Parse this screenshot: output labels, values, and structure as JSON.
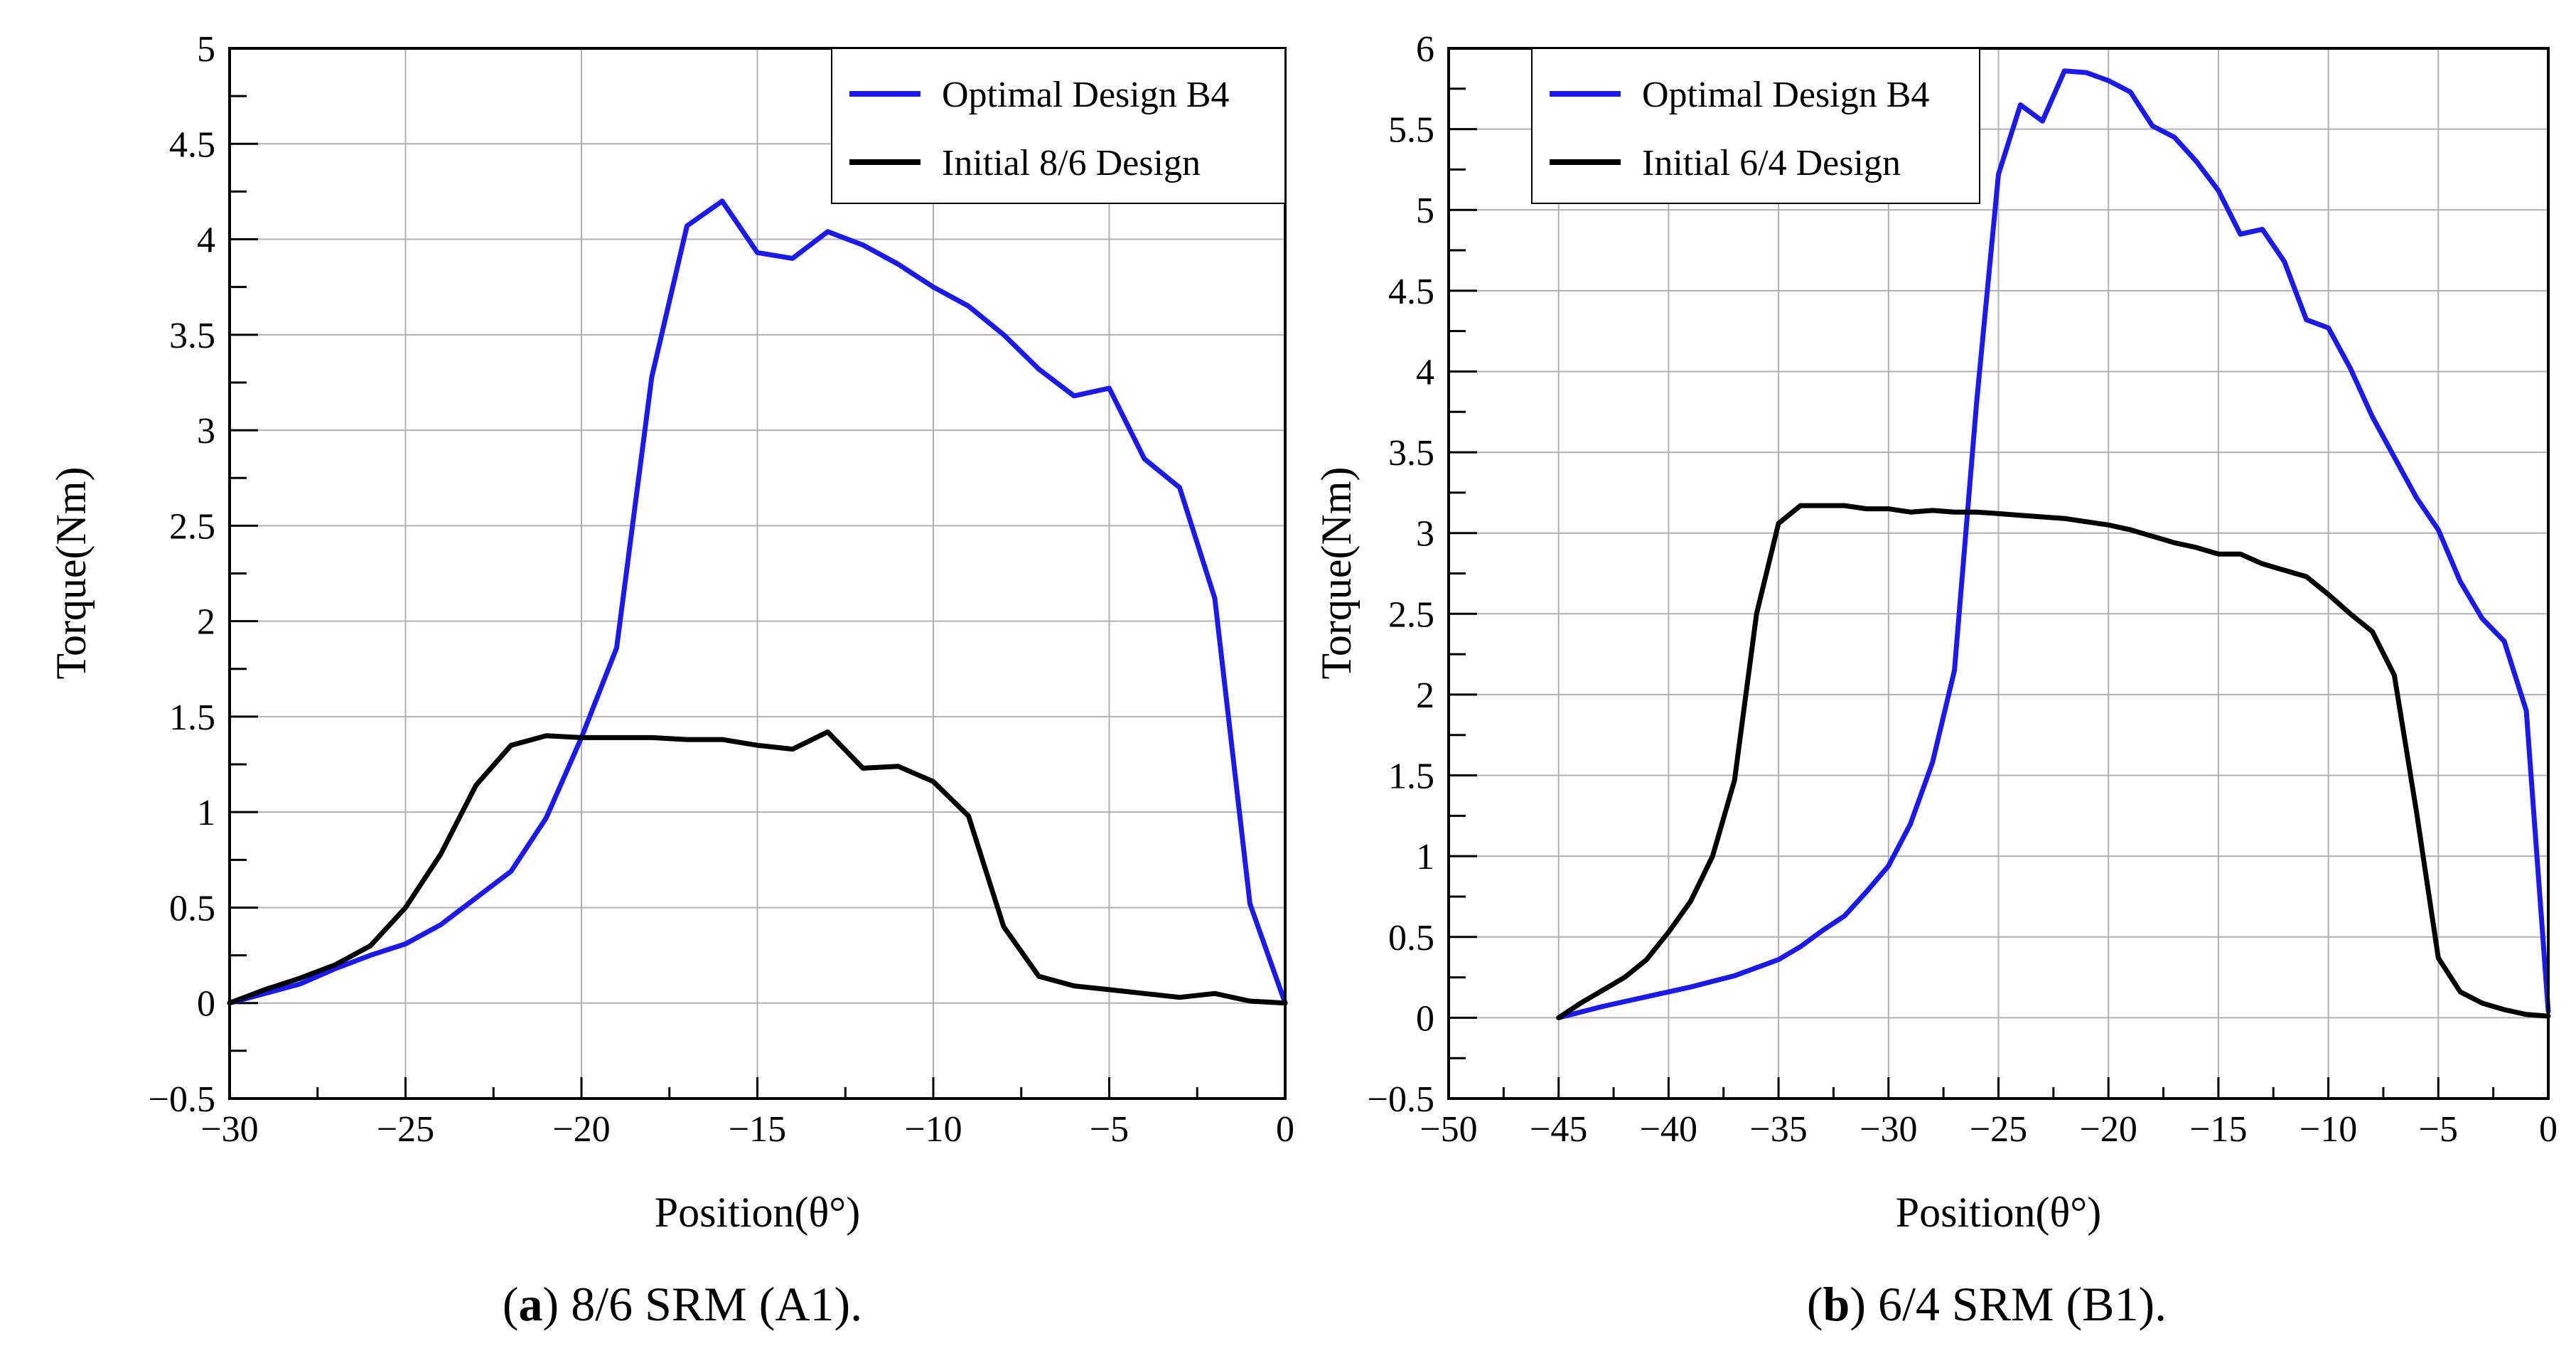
{
  "chart_data": [
    {
      "type": "line",
      "panel_letter": "a",
      "caption": "8/6 SRM (A1).",
      "xlabel": "Position(θ°)",
      "ylabel": "Torque(Nm)",
      "xlim": [
        -30,
        0
      ],
      "ylim": [
        -0.5,
        5
      ],
      "xticks": [
        -30,
        -25,
        -20,
        -15,
        -10,
        -5,
        0
      ],
      "xtick_labels": [
        "−30",
        "−25",
        "−20",
        "−15",
        "−10",
        "−5",
        "0"
      ],
      "yticks": [
        -0.5,
        0,
        0.5,
        1,
        1.5,
        2,
        2.5,
        3,
        3.5,
        4,
        4.5,
        5
      ],
      "ytick_labels": [
        "−0.5",
        "0",
        "0.5",
        "1",
        "1.5",
        "2",
        "2.5",
        "3",
        "3.5",
        "4",
        "4.5",
        "5"
      ],
      "xgrid": [
        -30,
        -25,
        -20,
        -15,
        -10,
        -5,
        0
      ],
      "ygrid": [
        0,
        0.5,
        1,
        1.5,
        2,
        2.5,
        3,
        3.5,
        4,
        4.5
      ],
      "grid": true,
      "legend_position": "top-right",
      "series": [
        {
          "name": "Optimal Design B4",
          "color": "#1a1aee",
          "x": [
            -30,
            -29,
            -28,
            -27,
            -26,
            -25,
            -24,
            -23,
            -22,
            -21,
            -20,
            -19,
            -18,
            -17,
            -16,
            -15,
            -14,
            -13,
            -12,
            -11,
            -10,
            -9,
            -8,
            -7,
            -6,
            -5,
            -4,
            -3,
            -2,
            -1,
            0
          ],
          "y": [
            0,
            0.05,
            0.1,
            0.18,
            0.25,
            0.31,
            0.41,
            0.55,
            0.69,
            0.97,
            1.39,
            1.86,
            3.28,
            4.07,
            4.2,
            3.93,
            3.9,
            4.04,
            3.97,
            3.87,
            3.75,
            3.65,
            3.5,
            3.32,
            3.18,
            3.22,
            2.85,
            2.7,
            2.12,
            0.52,
            0
          ]
        },
        {
          "name": "Initial 8/6 Design",
          "color": "#000000",
          "x": [
            -30,
            -29,
            -28,
            -27,
            -26,
            -25,
            -24,
            -23,
            -22,
            -21,
            -20,
            -19,
            -18,
            -17,
            -16,
            -15,
            -14,
            -13,
            -12,
            -11,
            -10,
            -9,
            -8,
            -7,
            -6,
            -5,
            -4,
            -3,
            -2,
            -1,
            0
          ],
          "y": [
            0,
            0.07,
            0.13,
            0.2,
            0.3,
            0.5,
            0.78,
            1.14,
            1.35,
            1.4,
            1.39,
            1.39,
            1.39,
            1.38,
            1.38,
            1.35,
            1.33,
            1.42,
            1.23,
            1.24,
            1.16,
            0.98,
            0.4,
            0.14,
            0.09,
            0.07,
            0.05,
            0.03,
            0.05,
            0.01,
            0
          ]
        }
      ]
    },
    {
      "type": "line",
      "panel_letter": "b",
      "caption": "6/4 SRM (B1).",
      "xlabel": "Position(θ°)",
      "ylabel": "Torque(Nm)",
      "xlim": [
        -50,
        0
      ],
      "ylim": [
        -0.5,
        6
      ],
      "xticks": [
        -50,
        -45,
        -40,
        -35,
        -30,
        -25,
        -20,
        -15,
        -10,
        -5,
        0
      ],
      "xtick_labels": [
        "−50",
        "−45",
        "−40",
        "−35",
        "−30",
        "−25",
        "−20",
        "−15",
        "−10",
        "−5",
        "0"
      ],
      "yticks": [
        -0.5,
        0,
        0.5,
        1,
        1.5,
        2,
        2.5,
        3,
        3.5,
        4,
        4.5,
        5,
        5.5,
        6
      ],
      "ytick_labels": [
        "−0.5",
        "0",
        "0.5",
        "1",
        "1.5",
        "2",
        "2.5",
        "3",
        "3.5",
        "4",
        "4.5",
        "5",
        "5.5",
        "6"
      ],
      "xgrid": [
        -45,
        -40,
        -35,
        -30,
        -25,
        -20,
        -15,
        -10,
        -5
      ],
      "ygrid": [
        0,
        0.5,
        1,
        1.5,
        2,
        2.5,
        3,
        3.5,
        4,
        4.5,
        5,
        5.5
      ],
      "grid": true,
      "legend_position": "top-left",
      "series": [
        {
          "name": "Optimal Design B4",
          "color": "#1a1aee",
          "x": [
            -45,
            -43,
            -41,
            -39,
            -37,
            -35,
            -34,
            -33,
            -32,
            -31,
            -30,
            -29,
            -28,
            -27,
            -26,
            -25,
            -24,
            -23,
            -22,
            -21,
            -20,
            -19,
            -18,
            -17,
            -16,
            -15,
            -14,
            -13,
            -12,
            -11,
            -10,
            -9,
            -8,
            -7,
            -6,
            -5,
            -4,
            -3,
            -2,
            -1,
            0
          ],
          "y": [
            0,
            0.07,
            0.13,
            0.19,
            0.26,
            0.36,
            0.44,
            0.54,
            0.63,
            0.78,
            0.94,
            1.2,
            1.58,
            2.15,
            3.8,
            5.22,
            5.65,
            5.55,
            5.86,
            5.85,
            5.8,
            5.73,
            5.52,
            5.45,
            5.3,
            5.12,
            4.85,
            4.88,
            4.68,
            4.32,
            4.27,
            4.02,
            3.72,
            3.47,
            3.22,
            3.02,
            2.7,
            2.47,
            2.33,
            1.9,
            0.04
          ]
        },
        {
          "name": "Initial 6/4 Design",
          "color": "#000000",
          "x": [
            -45,
            -44,
            -43,
            -42,
            -41,
            -40,
            -39,
            -38,
            -37,
            -36,
            -35,
            -34,
            -33,
            -32,
            -31,
            -30,
            -29,
            -28,
            -27,
            -26,
            -25,
            -24,
            -23,
            -22,
            -21,
            -20,
            -19,
            -18,
            -17,
            -16,
            -15,
            -14,
            -13,
            -12,
            -11,
            -10,
            -9,
            -8,
            -7,
            -6,
            -5,
            -4,
            -3,
            -2,
            -1,
            0
          ],
          "y": [
            0,
            0.09,
            0.17,
            0.25,
            0.36,
            0.53,
            0.72,
            1.0,
            1.47,
            2.5,
            3.06,
            3.17,
            3.17,
            3.17,
            3.15,
            3.15,
            3.13,
            3.14,
            3.13,
            3.13,
            3.12,
            3.11,
            3.1,
            3.09,
            3.07,
            3.05,
            3.02,
            2.98,
            2.94,
            2.91,
            2.87,
            2.87,
            2.81,
            2.77,
            2.73,
            2.62,
            2.5,
            2.39,
            2.12,
            1.28,
            0.37,
            0.16,
            0.09,
            0.05,
            0.02,
            0.01
          ]
        }
      ]
    }
  ]
}
